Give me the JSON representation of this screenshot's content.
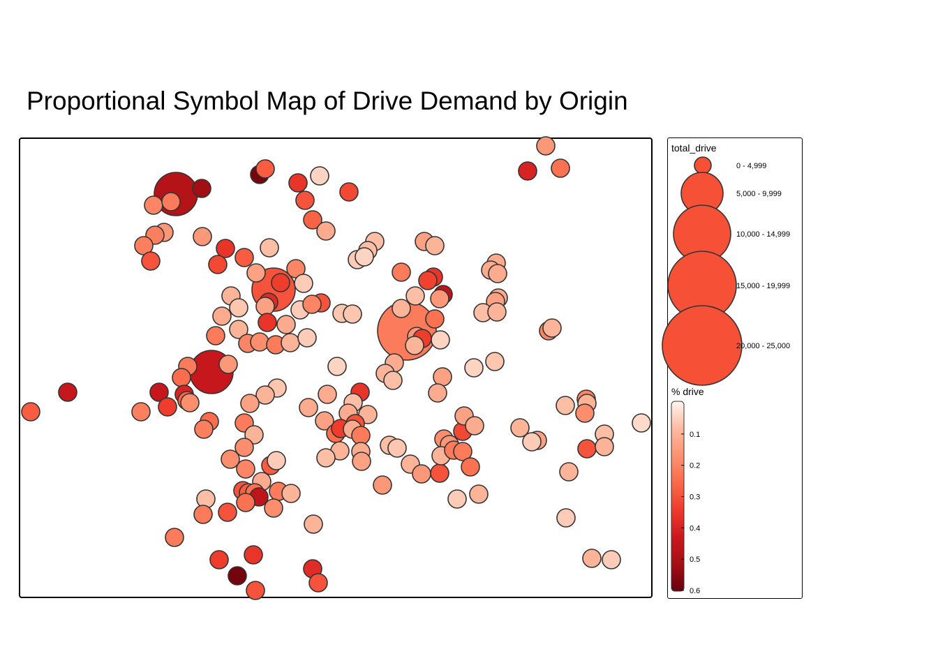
{
  "title": "Proportional Symbol Map of Drive Demand by Origin",
  "colors": {
    "ramp": [
      "#fff5f0",
      "#fcbba1",
      "#fc9272",
      "#fb6a4a",
      "#ef3b2c",
      "#cb181d",
      "#a50f15",
      "#67000d"
    ],
    "symbol_fill": "#f65136",
    "stroke": "#333333"
  },
  "legend": {
    "size_title": "total_drive",
    "size_classes": [
      {
        "label": "0 - 4,999"
      },
      {
        "label": "5,000 - 9,999"
      },
      {
        "label": "10,000 - 14,999"
      },
      {
        "label": "15,000 - 19,999"
      },
      {
        "label": "20,000 - 25,000"
      }
    ],
    "color_title": "% drive",
    "color_ticks": [
      "0.1",
      "0.2",
      "0.3",
      "0.4",
      "0.5",
      "0.6"
    ],
    "color_range": [
      0,
      0.6
    ]
  },
  "points": [
    [
      252,
      278,
      0.48,
      1
    ],
    [
      289,
      270,
      0.52,
      0
    ],
    [
      220,
      294,
      0.2,
      0
    ],
    [
      245,
      289,
      0.22,
      0
    ],
    [
      372,
      250,
      0.58,
      0
    ],
    [
      380,
      242,
      0.28,
      0
    ],
    [
      427,
      262,
      0.36,
      0
    ],
    [
      458,
      252,
      0.05,
      0
    ],
    [
      500,
      275,
      0.32,
      0
    ],
    [
      437,
      287,
      0.3,
      0
    ],
    [
      448,
      315,
      0.27,
      0
    ],
    [
      467,
      331,
      0.12,
      0
    ],
    [
      235,
      333,
      0.16,
      0
    ],
    [
      222,
      337,
      0.21,
      0
    ],
    [
      206,
      352,
      0.21,
      0
    ],
    [
      216,
      374,
      0.3,
      0
    ],
    [
      290,
      339,
      0.16,
      0
    ],
    [
      323,
      356,
      0.36,
      0
    ],
    [
      312,
      379,
      0.32,
      0
    ],
    [
      350,
      369,
      0.28,
      0
    ],
    [
      386,
      355,
      0.08,
      0
    ],
    [
      392,
      415,
      0.3,
      1
    ],
    [
      424,
      385,
      0.2,
      0
    ],
    [
      367,
      391,
      0.14,
      0
    ],
    [
      402,
      405,
      0.34,
      0
    ],
    [
      435,
      406,
      0.06,
      0
    ],
    [
      385,
      433,
      0.38,
      0
    ],
    [
      331,
      424,
      0.1,
      0
    ],
    [
      342,
      441,
      0.07,
      0
    ],
    [
      380,
      439,
      0.14,
      0
    ],
    [
      318,
      453,
      0.12,
      0
    ],
    [
      383,
      462,
      0.36,
      0
    ],
    [
      342,
      472,
      0.1,
      0
    ],
    [
      410,
      465,
      0.12,
      0
    ],
    [
      430,
      444,
      0.06,
      0
    ],
    [
      460,
      434,
      0.3,
      0
    ],
    [
      447,
      436,
      0.2,
      0
    ],
    [
      309,
      481,
      0.22,
      0
    ],
    [
      355,
      492,
      0.2,
      0
    ],
    [
      372,
      490,
      0.18,
      0
    ],
    [
      395,
      494,
      0.22,
      0
    ],
    [
      416,
      491,
      0.1,
      0
    ],
    [
      440,
      484,
      0.06,
      0
    ],
    [
      490,
      449,
      0.07,
      0
    ],
    [
      505,
      450,
      0.07,
      0
    ],
    [
      537,
      346,
      0.08,
      0
    ],
    [
      527,
      359,
      0.08,
      0
    ],
    [
      512,
      372,
      0.06,
      0
    ],
    [
      522,
      368,
      0.05,
      0
    ],
    [
      608,
      346,
      0.14,
      0
    ],
    [
      623,
      352,
      0.1,
      0
    ],
    [
      583,
      474,
      0.22,
      2
    ],
    [
      575,
      390,
      0.22,
      0
    ],
    [
      621,
      397,
      0.36,
      0
    ],
    [
      613,
      402,
      0.33,
      0
    ],
    [
      635,
      422,
      0.46,
      0
    ],
    [
      595,
      424,
      0.08,
      0
    ],
    [
      575,
      442,
      0.1,
      0
    ],
    [
      630,
      428,
      0.16,
      0
    ],
    [
      623,
      457,
      0.24,
      0
    ],
    [
      597,
      482,
      0.16,
      0
    ],
    [
      605,
      485,
      0.34,
      0
    ],
    [
      594,
      495,
      0.1,
      0
    ],
    [
      631,
      487,
      0.05,
      0
    ],
    [
      565,
      520,
      0.12,
      0
    ],
    [
      552,
      535,
      0.1,
      0
    ],
    [
      563,
      545,
      0.08,
      0
    ],
    [
      634,
      540,
      0.14,
      0
    ],
    [
      627,
      563,
      0.12,
      0
    ],
    [
      483,
      525,
      0.05,
      0
    ],
    [
      679,
      527,
      0.05,
      0
    ],
    [
      709,
      518,
      0.07,
      0
    ],
    [
      711,
      377,
      0.12,
      0
    ],
    [
      703,
      387,
      0.12,
      0
    ],
    [
      713,
      392,
      0.12,
      0
    ],
    [
      714,
      427,
      0.12,
      0
    ],
    [
      710,
      432,
      0.14,
      0
    ],
    [
      692,
      448,
      0.08,
      0
    ],
    [
      712,
      447,
      0.1,
      0
    ],
    [
      786,
      474,
      0.2,
      0
    ],
    [
      791,
      470,
      0.1,
      0
    ],
    [
      756,
      245,
      0.4,
      0
    ],
    [
      803,
      241,
      0.24,
      0
    ],
    [
      782,
      209,
      0.16,
      0
    ],
    [
      303,
      533,
      0.44,
      1
    ],
    [
      269,
      525,
      0.22,
      0
    ],
    [
      327,
      522,
      0.16,
      0
    ],
    [
      260,
      541,
      0.25,
      0
    ],
    [
      228,
      562,
      0.44,
      0
    ],
    [
      264,
      565,
      0.4,
      0
    ],
    [
      268,
      574,
      0.26,
      0
    ],
    [
      272,
      577,
      0.18,
      0
    ],
    [
      240,
      583,
      0.34,
      0
    ],
    [
      202,
      590,
      0.21,
      0
    ],
    [
      97,
      562,
      0.44,
      0
    ],
    [
      44,
      590,
      0.28,
      0
    ],
    [
      397,
      556,
      0.07,
      0
    ],
    [
      380,
      566,
      0.1,
      0
    ],
    [
      358,
      578,
      0.14,
      0
    ],
    [
      442,
      584,
      0.12,
      0
    ],
    [
      469,
      565,
      0.12,
      0
    ],
    [
      516,
      562,
      0.36,
      0
    ],
    [
      506,
      577,
      0.08,
      0
    ],
    [
      499,
      592,
      0.12,
      0
    ],
    [
      527,
      594,
      0.1,
      0
    ],
    [
      465,
      603,
      0.14,
      0
    ],
    [
      481,
      621,
      0.25,
      0
    ],
    [
      488,
      614,
      0.34,
      0
    ],
    [
      509,
      607,
      0.3,
      0
    ],
    [
      505,
      615,
      0.12,
      0
    ],
    [
      517,
      624,
      0.22,
      0
    ],
    [
      487,
      646,
      0.1,
      0
    ],
    [
      467,
      656,
      0.08,
      0
    ],
    [
      517,
      647,
      0.12,
      0
    ],
    [
      518,
      661,
      0.14,
      0
    ],
    [
      300,
      604,
      0.25,
      0
    ],
    [
      292,
      615,
      0.21,
      0
    ],
    [
      350,
      606,
      0.22,
      0
    ],
    [
      364,
      623,
      0.1,
      0
    ],
    [
      350,
      641,
      0.18,
      0
    ],
    [
      330,
      658,
      0.18,
      0
    ],
    [
      388,
      667,
      0.28,
      0
    ],
    [
      396,
      660,
      0.06,
      0
    ],
    [
      352,
      672,
      0.2,
      0
    ],
    [
      375,
      690,
      0.12,
      0
    ],
    [
      348,
      703,
      0.3,
      0
    ],
    [
      356,
      706,
      0.28,
      0
    ],
    [
      365,
      706,
      0.24,
      0
    ],
    [
      371,
      712,
      0.46,
      0
    ],
    [
      352,
      720,
      0.24,
      0
    ],
    [
      399,
      704,
      0.22,
      0
    ],
    [
      417,
      707,
      0.1,
      0
    ],
    [
      392,
      728,
      0.18,
      0
    ],
    [
      295,
      715,
      0.08,
      0
    ],
    [
      291,
      737,
      0.22,
      0
    ],
    [
      326,
      734,
      0.3,
      0
    ],
    [
      449,
      751,
      0.1,
      0
    ],
    [
      250,
      770,
      0.22,
      0
    ],
    [
      314,
      802,
      0.34,
      0
    ],
    [
      363,
      795,
      0.36,
      0
    ],
    [
      340,
      825,
      0.58,
      0
    ],
    [
      366,
      846,
      0.3,
      0
    ],
    [
      448,
      815,
      0.38,
      0
    ],
    [
      456,
      835,
      0.3,
      0
    ],
    [
      558,
      638,
      0.08,
      0
    ],
    [
      569,
      642,
      0.07,
      0
    ],
    [
      548,
      695,
      0.16,
      0
    ],
    [
      588,
      665,
      0.1,
      0
    ],
    [
      604,
      679,
      0.16,
      0
    ],
    [
      630,
      678,
      0.3,
      0
    ],
    [
      636,
      629,
      0.18,
      0
    ],
    [
      644,
      637,
      0.16,
      0
    ],
    [
      632,
      653,
      0.1,
      0
    ],
    [
      663,
      618,
      0.32,
      0
    ],
    [
      650,
      645,
      0.22,
      0
    ],
    [
      663,
      647,
      0.22,
      0
    ],
    [
      665,
      596,
      0.14,
      0
    ],
    [
      680,
      610,
      0.12,
      0
    ],
    [
      674,
      669,
      0.24,
      0
    ],
    [
      655,
      715,
      0.06,
      0
    ],
    [
      686,
      708,
      0.1,
      0
    ],
    [
      745,
      613,
      0.1,
      0
    ],
    [
      770,
      631,
      0.14,
      0
    ],
    [
      762,
      633,
      0.06,
      0
    ],
    [
      810,
      581,
      0.08,
      0
    ],
    [
      840,
      572,
      0.2,
      0
    ],
    [
      841,
      578,
      0.1,
      0
    ],
    [
      838,
      592,
      0.18,
      0
    ],
    [
      866,
      622,
      0.08,
      0
    ],
    [
      841,
      643,
      0.3,
      0
    ],
    [
      866,
      640,
      0.1,
      0
    ],
    [
      815,
      676,
      0.1,
      0
    ],
    [
      811,
      742,
      0.06,
      0
    ],
    [
      848,
      800,
      0.1,
      0
    ],
    [
      876,
      802,
      0.06,
      0
    ],
    [
      919,
      606,
      0.04,
      0
    ]
  ]
}
